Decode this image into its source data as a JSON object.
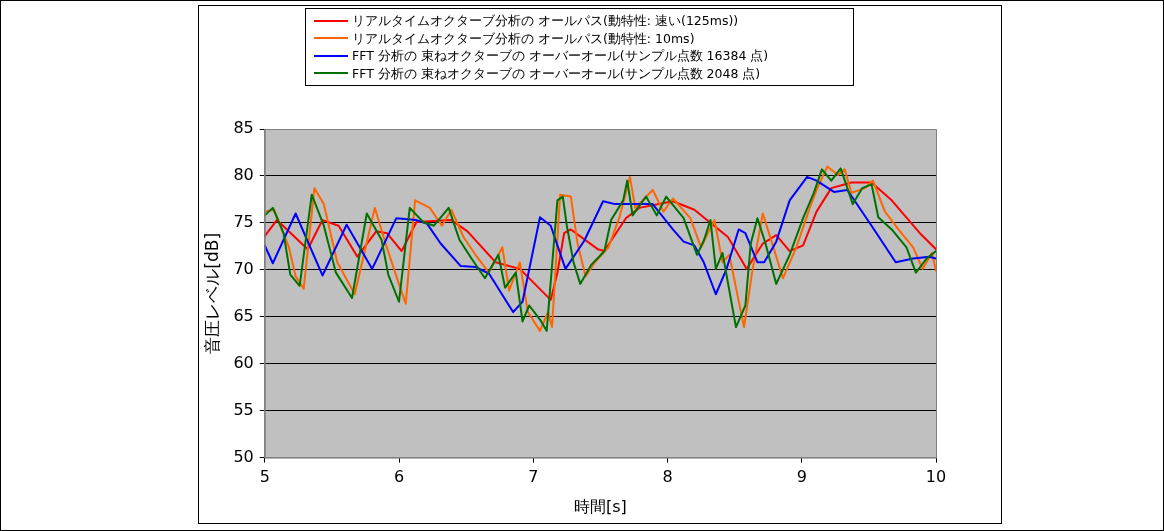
{
  "chart_data": {
    "type": "line",
    "xlabel": "時間[s]",
    "ylabel": "音圧レベル[dB]",
    "xlim": [
      5,
      10
    ],
    "xticks": [
      5,
      6,
      7,
      8,
      9,
      10
    ],
    "ylim": [
      50,
      85
    ],
    "yticks": [
      50,
      55,
      60,
      65,
      70,
      75,
      80,
      85
    ],
    "grid": "y",
    "legend": "top",
    "marker": "none",
    "line_style": "solid",
    "series": [
      {
        "name": "リアルタイムオクターブ分析の オールパス(動特性: 速い(125ms))",
        "color": "#ff0000",
        "x": [
          5.0,
          5.09,
          5.32,
          5.43,
          5.55,
          5.69,
          5.83,
          5.91,
          6.02,
          6.13,
          6.39,
          6.51,
          6.72,
          6.9,
          7.13,
          7.18,
          7.23,
          7.28,
          7.48,
          7.53,
          7.69,
          7.79,
          8.04,
          8.2,
          8.45,
          8.59,
          8.71,
          8.81,
          8.91,
          9.01,
          9.11,
          9.22,
          9.37,
          9.52,
          9.67,
          9.88,
          10.0
        ],
        "values": [
          73.6,
          75.3,
          72.2,
          75.3,
          74.7,
          71.4,
          74.1,
          73.9,
          72.0,
          75.1,
          75.3,
          74.1,
          70.8,
          70.1,
          66.8,
          69.7,
          73.9,
          74.3,
          72.2,
          72.0,
          75.5,
          76.6,
          77.3,
          76.4,
          73.5,
          70.1,
          72.8,
          73.7,
          72.0,
          72.6,
          76.2,
          78.7,
          79.3,
          79.3,
          77.4,
          73.9,
          72.2
        ]
      },
      {
        "name": "リアルタイムオクターブ分析の オールパス(動特性: 10ms)",
        "color": "#ff6600",
        "x": [
          5.0,
          5.07,
          5.18,
          5.23,
          5.29,
          5.37,
          5.44,
          5.54,
          5.67,
          5.82,
          5.9,
          5.99,
          6.05,
          6.12,
          6.23,
          6.32,
          6.39,
          6.48,
          6.57,
          6.67,
          6.77,
          6.82,
          6.9,
          6.96,
          7.05,
          7.11,
          7.14,
          7.2,
          7.28,
          7.33,
          7.39,
          7.46,
          7.56,
          7.64,
          7.72,
          7.76,
          7.89,
          7.97,
          8.04,
          8.17,
          8.25,
          8.35,
          8.41,
          8.46,
          8.57,
          8.63,
          8.71,
          8.78,
          8.86,
          8.96,
          9.06,
          9.11,
          9.19,
          9.27,
          9.32,
          9.37,
          9.47,
          9.53,
          9.62,
          9.72,
          9.83,
          9.9,
          9.97,
          10.0
        ],
        "values": [
          76.2,
          76.4,
          72.4,
          69.3,
          68.0,
          78.7,
          77.0,
          70.8,
          67.4,
          76.6,
          72.8,
          68.9,
          66.4,
          77.4,
          76.6,
          74.7,
          76.4,
          73.5,
          71.6,
          69.7,
          72.4,
          67.8,
          70.8,
          65.5,
          63.5,
          65.5,
          63.9,
          78.0,
          77.8,
          72.8,
          69.3,
          70.8,
          72.4,
          75.5,
          79.9,
          76.6,
          78.5,
          76.2,
          77.6,
          75.5,
          72.4,
          75.3,
          70.8,
          71.6,
          63.9,
          69.7,
          76.0,
          72.8,
          69.1,
          72.4,
          76.6,
          78.5,
          81.0,
          80.1,
          80.7,
          78.2,
          78.7,
          79.5,
          76.2,
          74.3,
          72.4,
          70.1,
          71.8,
          69.9
        ]
      },
      {
        "name": "FFT 分析の 束ねオクターブの オーバーオール(サンプル点数 16384 点)",
        "color": "#0000ff",
        "x": [
          5.0,
          5.06,
          5.23,
          5.43,
          5.61,
          5.8,
          5.98,
          6.13,
          6.21,
          6.31,
          6.46,
          6.57,
          6.67,
          6.85,
          6.92,
          7.05,
          7.13,
          7.24,
          7.38,
          7.52,
          7.61,
          7.89,
          8.04,
          8.12,
          8.2,
          8.27,
          8.36,
          8.44,
          8.53,
          8.58,
          8.67,
          8.72,
          8.81,
          8.91,
          9.04,
          9.11,
          9.24,
          9.34,
          9.52,
          9.7,
          9.83,
          9.95,
          10.0
        ],
        "values": [
          72.6,
          70.7,
          76.0,
          69.4,
          74.8,
          70.1,
          75.5,
          75.3,
          74.9,
          72.8,
          70.4,
          70.3,
          69.6,
          65.5,
          66.6,
          75.6,
          74.7,
          70.1,
          73.1,
          77.3,
          77.0,
          77.0,
          74.3,
          73.0,
          72.6,
          70.8,
          67.4,
          70.1,
          74.3,
          73.9,
          70.8,
          70.8,
          73.0,
          77.4,
          79.9,
          79.5,
          78.3,
          78.5,
          74.7,
          70.8,
          71.2,
          71.4,
          71.2
        ]
      },
      {
        "name": "FFT 分析の 束ねオクターブの オーバーオール(サンプル点数 2048 点)",
        "color": "#007000",
        "x": [
          5.0,
          5.06,
          5.14,
          5.19,
          5.26,
          5.35,
          5.44,
          5.53,
          5.65,
          5.76,
          5.87,
          5.92,
          6.0,
          6.08,
          6.18,
          6.26,
          6.37,
          6.45,
          6.54,
          6.64,
          6.74,
          6.79,
          6.87,
          6.92,
          6.97,
          7.05,
          7.1,
          7.18,
          7.22,
          7.25,
          7.3,
          7.35,
          7.43,
          7.53,
          7.58,
          7.67,
          7.7,
          7.74,
          7.84,
          7.92,
          7.99,
          8.12,
          8.22,
          8.27,
          8.32,
          8.36,
          8.41,
          8.51,
          8.58,
          8.62,
          8.67,
          8.73,
          8.81,
          8.91,
          9.01,
          9.09,
          9.15,
          9.22,
          9.29,
          9.38,
          9.45,
          9.52,
          9.57,
          9.67,
          9.78,
          9.85,
          9.93,
          10.0
        ],
        "values": [
          75.8,
          76.6,
          73.9,
          69.5,
          68.3,
          78.0,
          74.7,
          69.7,
          67.0,
          76.0,
          73.2,
          69.5,
          66.6,
          76.6,
          75.1,
          74.7,
          76.6,
          73.2,
          71.2,
          69.1,
          71.6,
          68.1,
          69.7,
          64.5,
          66.2,
          64.7,
          63.5,
          77.4,
          77.8,
          74.7,
          70.8,
          68.5,
          70.5,
          72.0,
          75.3,
          77.4,
          79.5,
          75.8,
          77.8,
          75.8,
          77.8,
          75.5,
          71.6,
          73.1,
          75.3,
          70.1,
          71.8,
          63.9,
          66.2,
          72.8,
          75.5,
          72.8,
          68.5,
          71.6,
          75.5,
          78.2,
          80.7,
          79.5,
          80.8,
          77.0,
          78.7,
          79.1,
          75.6,
          74.3,
          72.4,
          69.7,
          71.2,
          72.0
        ]
      }
    ]
  }
}
